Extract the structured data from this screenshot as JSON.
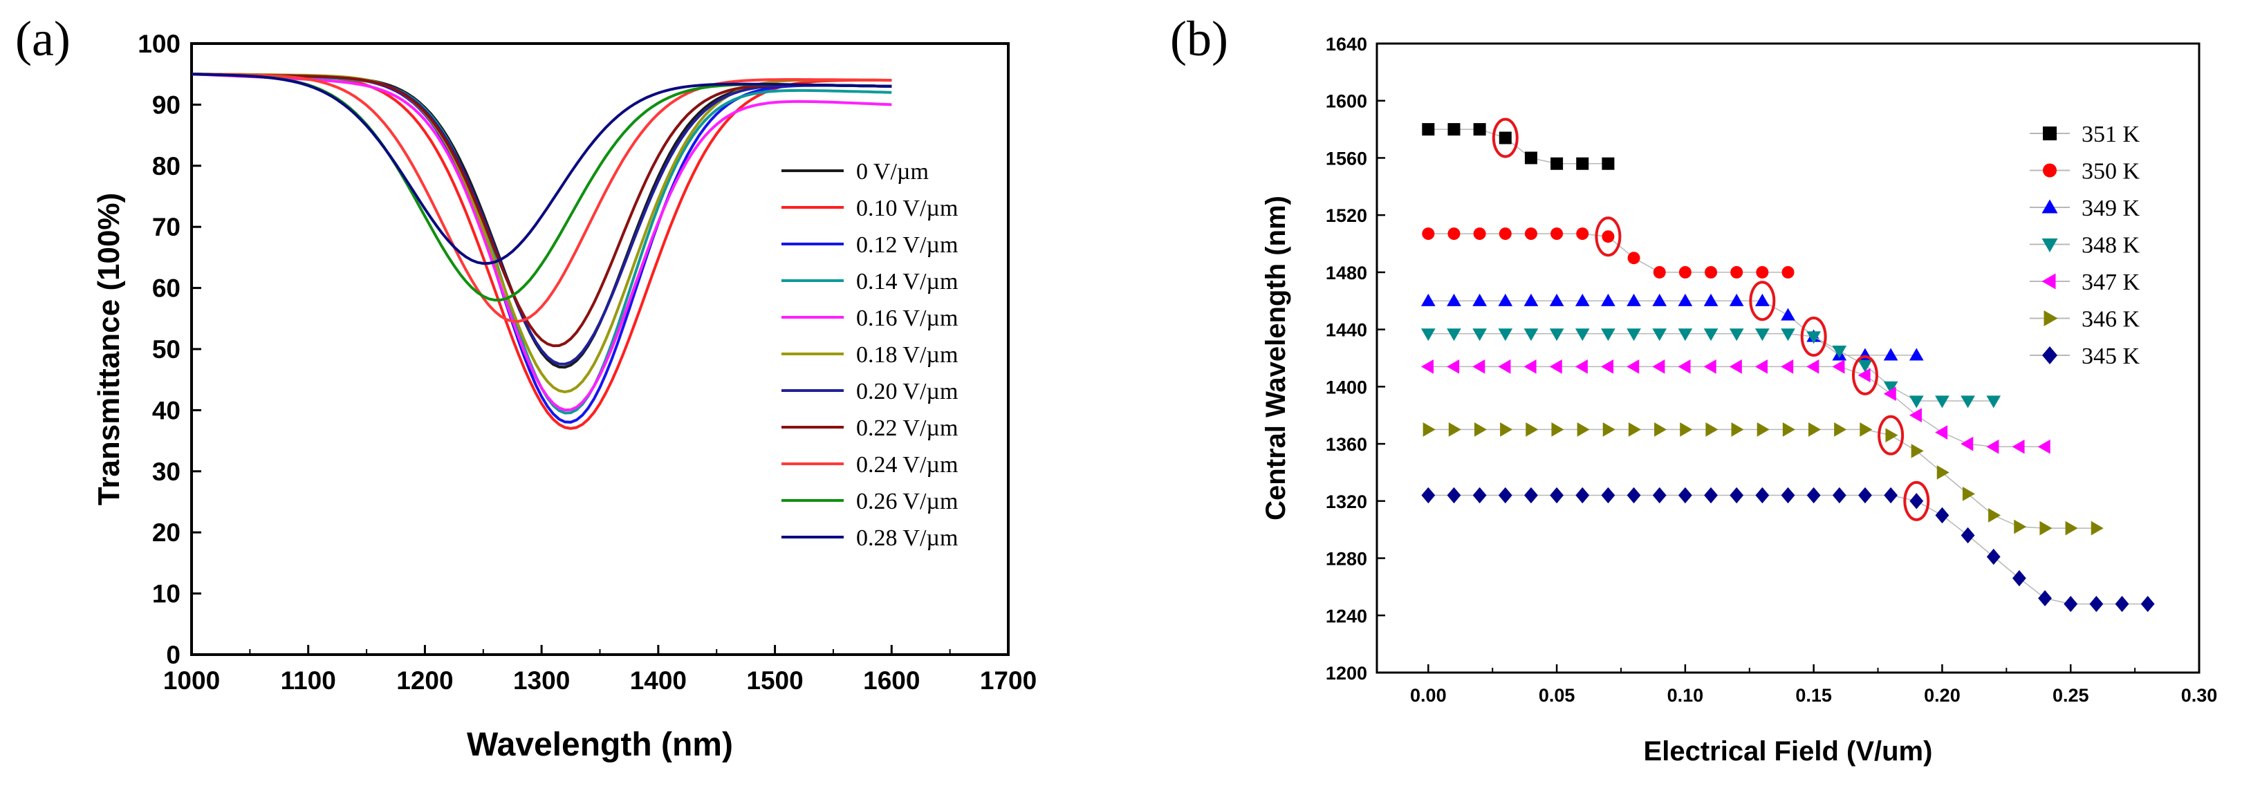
{
  "colors": {
    "axis": "#000000",
    "highlight_circle": "#e8151b",
    "connector": "#b8b8b8"
  },
  "chart_data": [
    {
      "panel_label": "(a)",
      "type": "line",
      "xlabel": "Wavelength (nm)",
      "ylabel": "Transmittance (100%)",
      "xlim": [
        1000,
        1700
      ],
      "ylim": [
        0,
        100
      ],
      "xticks": [
        "1000",
        "1100",
        "1200",
        "1300",
        "1400",
        "1500",
        "1600",
        "1700"
      ],
      "yticks": [
        "0",
        "10",
        "20",
        "30",
        "40",
        "50",
        "60",
        "70",
        "80",
        "90",
        "100"
      ],
      "legend_position": "right",
      "series": [
        {
          "name": "0      V/µm",
          "color": "#1a1a1a",
          "min_x": 1318,
          "min_y": 47,
          "width": 78,
          "start": 95,
          "end": 93
        },
        {
          "name": "0.10 V/µm",
          "color": "#ff2020",
          "min_x": 1325,
          "min_y": 37,
          "width": 92,
          "start": 95,
          "end": 94
        },
        {
          "name": "0.12 V/µm",
          "color": "#1515ee",
          "min_x": 1323,
          "min_y": 38,
          "width": 82,
          "start": 95,
          "end": 93
        },
        {
          "name": "0.14 V/µm",
          "color": "#0e9a9a",
          "min_x": 1322,
          "min_y": 39.5,
          "width": 78,
          "start": 95,
          "end": 92
        },
        {
          "name": "0.16 V/µm",
          "color": "#ff20ff",
          "min_x": 1322,
          "min_y": 40,
          "width": 82,
          "start": 95,
          "end": 90
        },
        {
          "name": "0.18 V/µm",
          "color": "#9a9a10",
          "min_x": 1320,
          "min_y": 43,
          "width": 82,
          "start": 95,
          "end": 94
        },
        {
          "name": "0.20 V/µm",
          "color": "#20209a",
          "min_x": 1318,
          "min_y": 47.5,
          "width": 80,
          "start": 95,
          "end": 93
        },
        {
          "name": "0.22 V/µm",
          "color": "#8a1010",
          "min_x": 1312,
          "min_y": 50.5,
          "width": 78,
          "start": 95,
          "end": 93
        },
        {
          "name": "0.24 V/µm",
          "color": "#ff3a3a",
          "min_x": 1278,
          "min_y": 54.5,
          "width": 88,
          "start": 95,
          "end": 94
        },
        {
          "name": "0.26 V/µm",
          "color": "#109010",
          "min_x": 1262,
          "min_y": 58,
          "width": 90,
          "start": 95,
          "end": 93
        },
        {
          "name": "0.28 V/µm",
          "color": "#0a0a80",
          "min_x": 1252,
          "min_y": 64,
          "width": 88,
          "start": 95,
          "end": 93
        }
      ]
    },
    {
      "panel_label": "(b)",
      "type": "scatter",
      "xlabel": "Electrical Field (V/um)",
      "ylabel": "Central Wavelength (nm)",
      "xlim": [
        -0.02,
        0.3
      ],
      "ylim": [
        1200,
        1640
      ],
      "xticks": [
        "0.00",
        "0.05",
        "0.10",
        "0.15",
        "0.20",
        "0.25",
        "0.30"
      ],
      "yticks": [
        "1200",
        "1240",
        "1280",
        "1320",
        "1360",
        "1400",
        "1440",
        "1480",
        "1520",
        "1560",
        "1600",
        "1640"
      ],
      "legend_position": "top-right",
      "series": [
        {
          "name": "351 K",
          "color": "#000000",
          "marker": "square",
          "x": [
            0.0,
            0.01,
            0.02,
            0.03,
            0.04,
            0.05,
            0.06,
            0.07
          ],
          "y": [
            1580,
            1580,
            1580,
            1574,
            1560,
            1556,
            1556,
            1556
          ]
        },
        {
          "name": "350 K",
          "color": "#ff0000",
          "marker": "circle",
          "x": [
            0.0,
            0.01,
            0.02,
            0.03,
            0.04,
            0.05,
            0.06,
            0.07,
            0.08,
            0.09,
            0.1,
            0.11,
            0.12,
            0.13,
            0.14
          ],
          "y": [
            1507,
            1507,
            1507,
            1507,
            1507,
            1507,
            1507,
            1505,
            1490,
            1480,
            1480,
            1480,
            1480,
            1480,
            1480
          ]
        },
        {
          "name": "349 K",
          "color": "#0000ff",
          "marker": "triangle-up",
          "x": [
            0.0,
            0.01,
            0.02,
            0.03,
            0.04,
            0.05,
            0.06,
            0.07,
            0.08,
            0.09,
            0.1,
            0.11,
            0.12,
            0.13,
            0.14,
            0.15,
            0.16,
            0.17,
            0.18,
            0.19
          ],
          "y": [
            1460,
            1460,
            1460,
            1460,
            1460,
            1460,
            1460,
            1460,
            1460,
            1460,
            1460,
            1460,
            1460,
            1460,
            1450,
            1435,
            1422,
            1422,
            1422,
            1422
          ]
        },
        {
          "name": "348 K",
          "color": "#008b8b",
          "marker": "triangle-down",
          "x": [
            0.0,
            0.01,
            0.02,
            0.03,
            0.04,
            0.05,
            0.06,
            0.07,
            0.08,
            0.09,
            0.1,
            0.11,
            0.12,
            0.13,
            0.14,
            0.15,
            0.16,
            0.17,
            0.18,
            0.19,
            0.2,
            0.21,
            0.22
          ],
          "y": [
            1437,
            1437,
            1437,
            1437,
            1437,
            1437,
            1437,
            1437,
            1437,
            1437,
            1437,
            1437,
            1437,
            1437,
            1437,
            1435,
            1425,
            1415,
            1400,
            1390,
            1390,
            1390,
            1390
          ]
        },
        {
          "name": "347 K",
          "color": "#ff00ff",
          "marker": "triangle-left",
          "x": [
            0.0,
            0.01,
            0.02,
            0.03,
            0.04,
            0.05,
            0.06,
            0.07,
            0.08,
            0.09,
            0.1,
            0.11,
            0.12,
            0.13,
            0.14,
            0.15,
            0.16,
            0.17,
            0.18,
            0.19,
            0.2,
            0.21,
            0.22,
            0.23,
            0.24
          ],
          "y": [
            1414,
            1414,
            1414,
            1414,
            1414,
            1414,
            1414,
            1414,
            1414,
            1414,
            1414,
            1414,
            1414,
            1414,
            1414,
            1414,
            1414,
            1408,
            1395,
            1380,
            1368,
            1360,
            1358,
            1358,
            1358
          ]
        },
        {
          "name": "346 K",
          "color": "#808000",
          "marker": "triangle-right",
          "x": [
            0.0,
            0.01,
            0.02,
            0.03,
            0.04,
            0.05,
            0.06,
            0.07,
            0.08,
            0.09,
            0.1,
            0.11,
            0.12,
            0.13,
            0.14,
            0.15,
            0.16,
            0.17,
            0.18,
            0.19,
            0.2,
            0.21,
            0.22,
            0.23,
            0.24,
            0.25,
            0.26
          ],
          "y": [
            1370,
            1370,
            1370,
            1370,
            1370,
            1370,
            1370,
            1370,
            1370,
            1370,
            1370,
            1370,
            1370,
            1370,
            1370,
            1370,
            1370,
            1370,
            1366,
            1355,
            1340,
            1325,
            1310,
            1302,
            1301,
            1301,
            1301
          ]
        },
        {
          "name": "345 K",
          "color": "#00008b",
          "marker": "diamond",
          "x": [
            0.0,
            0.01,
            0.02,
            0.03,
            0.04,
            0.05,
            0.06,
            0.07,
            0.08,
            0.09,
            0.1,
            0.11,
            0.12,
            0.13,
            0.14,
            0.15,
            0.16,
            0.17,
            0.18,
            0.19,
            0.2,
            0.21,
            0.22,
            0.23,
            0.24,
            0.25,
            0.26,
            0.27,
            0.28
          ],
          "y": [
            1324,
            1324,
            1324,
            1324,
            1324,
            1324,
            1324,
            1324,
            1324,
            1324,
            1324,
            1324,
            1324,
            1324,
            1324,
            1324,
            1324,
            1324,
            1324,
            1320,
            1310,
            1296,
            1281,
            1266,
            1252,
            1248,
            1248,
            1248,
            1248
          ]
        }
      ],
      "annotations": [
        {
          "type": "ellipse",
          "x": 0.03,
          "y": 1574
        },
        {
          "type": "ellipse",
          "x": 0.07,
          "y": 1505
        },
        {
          "type": "ellipse",
          "x": 0.13,
          "y": 1460
        },
        {
          "type": "ellipse",
          "x": 0.15,
          "y": 1435
        },
        {
          "type": "ellipse",
          "x": 0.17,
          "y": 1408
        },
        {
          "type": "ellipse",
          "x": 0.18,
          "y": 1366
        },
        {
          "type": "ellipse",
          "x": 0.19,
          "y": 1320
        }
      ]
    }
  ]
}
